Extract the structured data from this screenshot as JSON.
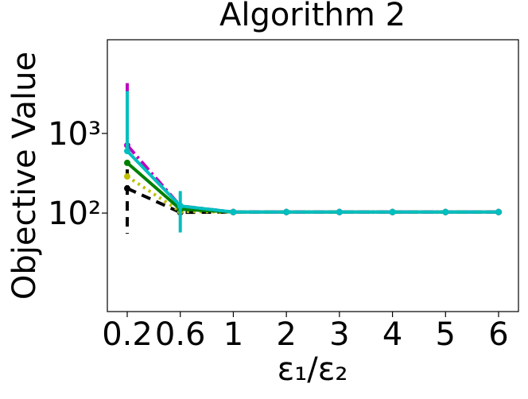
{
  "chart_data": {
    "type": "line",
    "title": "Algorithm 2",
    "x_label": "ε₁/ε₂",
    "y_label": "Objective Value",
    "categories": [
      "0.2",
      "0.6",
      "1",
      "2",
      "3",
      "4",
      "5",
      "6"
    ],
    "log_y": true,
    "ylim": [
      5.8,
      15000
    ],
    "yticks": [
      {
        "value": 100,
        "label": "10²"
      },
      {
        "value": 1000,
        "label": "10³"
      }
    ],
    "series": [
      {
        "name": "black",
        "color": "#000000",
        "dash": "12,8",
        "values": [
          204,
          102,
          103,
          103,
          103,
          103,
          103,
          103
        ],
        "errors": [
          149,
          null,
          null,
          null,
          null,
          null,
          null,
          null
        ]
      },
      {
        "name": "yellow",
        "color": "#bfbf00",
        "dash": "3,5",
        "values": [
          288,
          105,
          103,
          103,
          103,
          103,
          103,
          103
        ],
        "errors": [
          null,
          null,
          null,
          null,
          null,
          null,
          null,
          null
        ]
      },
      {
        "name": "green",
        "color": "#008000",
        "dash": "",
        "values": [
          427,
          112,
          103,
          103,
          103,
          103,
          103,
          103
        ],
        "errors": [
          null,
          null,
          null,
          null,
          null,
          null,
          null,
          null
        ]
      },
      {
        "name": "magenta",
        "color": "#bf00bf",
        "dash": "14,5,3,5",
        "values": [
          710,
          123,
          103,
          103,
          103,
          103,
          103,
          103
        ],
        "errors": [
          3560,
          null,
          null,
          null,
          null,
          null,
          null,
          null
        ]
      },
      {
        "name": "cyan",
        "color": "#00bfbf",
        "dash": "",
        "values": [
          600,
          123,
          103,
          103,
          103,
          103,
          103,
          103
        ],
        "errors": [
          2800,
          66,
          null,
          null,
          null,
          null,
          null,
          null
        ]
      }
    ]
  }
}
